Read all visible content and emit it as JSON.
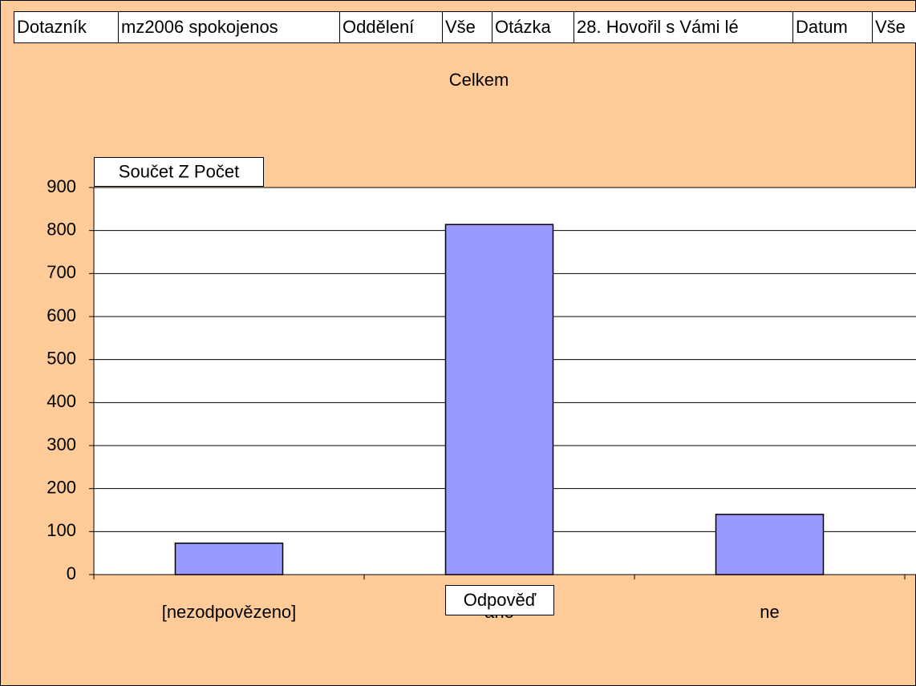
{
  "chart_data": {
    "type": "bar",
    "page_fields": [
      {
        "name": "Dotazník",
        "value": "mz2006 spokojenos"
      },
      {
        "name": "Oddělení",
        "value": "Vše"
      },
      {
        "name": "Otázka",
        "value": "28. Hovořil s Vámi lé"
      },
      {
        "name": "Datum",
        "value": "Vše"
      }
    ],
    "title": "Celkem",
    "y_label": "Součet Z Počet",
    "x_label": "Odpověď",
    "categories": [
      "[nezodpovězeno]",
      "ano",
      "ne"
    ],
    "values": [
      73,
      814,
      140
    ],
    "color": "#9999ff",
    "ylim": [
      0,
      900
    ],
    "yticks": [
      0,
      100,
      200,
      300,
      400,
      500,
      600,
      700,
      800,
      900
    ],
    "grid": true
  }
}
